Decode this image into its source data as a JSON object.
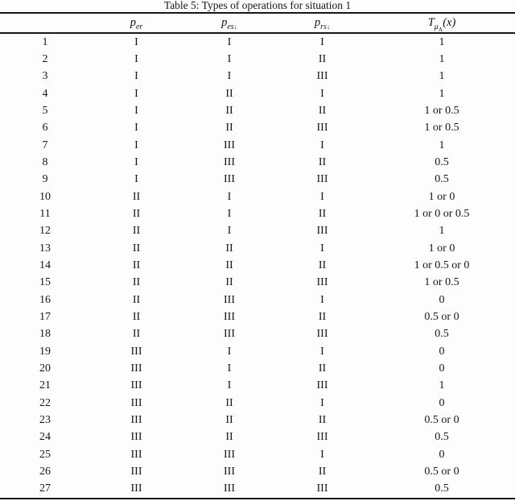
{
  "table": {
    "title": "Table 5: Types of operations for situation 1",
    "columns": [
      {
        "base": "",
        "sub": "",
        "arrow": "",
        "subsub": "",
        "suffix": ""
      },
      {
        "base": "p",
        "sub": "er",
        "arrow": "",
        "subsub": "",
        "suffix": ""
      },
      {
        "base": "p",
        "sub": "es",
        "arrow": "↓",
        "subsub": "",
        "suffix": ""
      },
      {
        "base": "p",
        "sub": "rs",
        "arrow": "↓",
        "subsub": "",
        "suffix": ""
      },
      {
        "base": "T",
        "sub": "μ",
        "arrow": "",
        "subsub": "A",
        "suffix": "(x)"
      }
    ],
    "rows": [
      [
        "1",
        "I",
        "I",
        "I",
        "1"
      ],
      [
        "2",
        "I",
        "I",
        "II",
        "1"
      ],
      [
        "3",
        "I",
        "I",
        "III",
        "1"
      ],
      [
        "4",
        "I",
        "II",
        "I",
        "1"
      ],
      [
        "5",
        "I",
        "II",
        "II",
        "1 or 0.5"
      ],
      [
        "6",
        "I",
        "II",
        "III",
        "1 or 0.5"
      ],
      [
        "7",
        "I",
        "III",
        "I",
        "1"
      ],
      [
        "8",
        "I",
        "III",
        "II",
        "0.5"
      ],
      [
        "9",
        "I",
        "III",
        "III",
        "0.5"
      ],
      [
        "10",
        "II",
        "I",
        "I",
        "1 or 0"
      ],
      [
        "11",
        "II",
        "I",
        "II",
        "1 or 0 or 0.5"
      ],
      [
        "12",
        "II",
        "I",
        "III",
        "1"
      ],
      [
        "13",
        "II",
        "II",
        "I",
        "1 or 0"
      ],
      [
        "14",
        "II",
        "II",
        "II",
        "1 or 0.5 or 0"
      ],
      [
        "15",
        "II",
        "II",
        "III",
        "1 or 0.5"
      ],
      [
        "16",
        "II",
        "III",
        "I",
        "0"
      ],
      [
        "17",
        "II",
        "III",
        "II",
        "0.5 or 0"
      ],
      [
        "18",
        "II",
        "III",
        "III",
        "0.5"
      ],
      [
        "19",
        "III",
        "I",
        "I",
        "0"
      ],
      [
        "20",
        "III",
        "I",
        "II",
        "0"
      ],
      [
        "21",
        "III",
        "I",
        "III",
        "1"
      ],
      [
        "22",
        "III",
        "II",
        "I",
        "0"
      ],
      [
        "23",
        "III",
        "II",
        "II",
        "0.5 or 0"
      ],
      [
        "24",
        "III",
        "II",
        "III",
        "0.5"
      ],
      [
        "25",
        "III",
        "III",
        "I",
        "0"
      ],
      [
        "26",
        "III",
        "III",
        "II",
        "0.5 or 0"
      ],
      [
        "27",
        "III",
        "III",
        "III",
        "0.5"
      ]
    ]
  }
}
